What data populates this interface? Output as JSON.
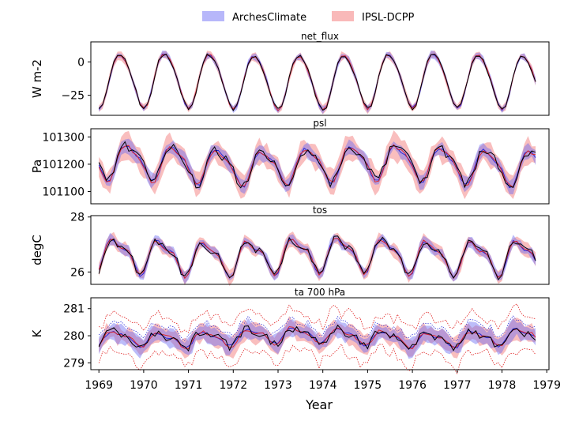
{
  "chart_data": {
    "type": "line",
    "xlabel": "Year",
    "x_ticks": [
      "1969",
      "1970",
      "1971",
      "1972",
      "1973",
      "1974",
      "1975",
      "1976",
      "1977",
      "1978",
      "1979"
    ],
    "xlim": [
      1968.82,
      1979.05
    ],
    "legend": {
      "placement": "top-center",
      "entries": [
        {
          "label": "ArchesClimate",
          "color": "#7b7bf5"
        },
        {
          "label": "IPSL-DCPP",
          "color": "#f58a8a"
        }
      ]
    },
    "colors": {
      "arches_band": "#6a6af2",
      "ipsl_band": "#f26f6f",
      "arches_line": "#1f1fd6",
      "ipsl_line": "#e02020",
      "truth_line": "#000000"
    },
    "panels": [
      {
        "title": "net_flux",
        "ylabel": "W m-2",
        "ylim": [
          -40,
          15
        ],
        "yticks": [
          {
            "v": 0,
            "label": "0"
          },
          {
            "v": -25,
            "label": "−25"
          }
        ],
        "mean": -14,
        "amp": 20,
        "harm2": 2,
        "phase": 0.24,
        "noise": 1.5,
        "band_a": 2.2,
        "band_i": 2.6,
        "seed": 11
      },
      {
        "title": "psl",
        "ylabel": "Pa",
        "ylim": [
          101055,
          101330
        ],
        "yticks": [
          {
            "v": 101300,
            "label": "101300"
          },
          {
            "v": 101200,
            "label": "101200"
          },
          {
            "v": 101100,
            "label": "101100"
          }
        ],
        "mean": 101200,
        "amp": 60,
        "harm2": 15,
        "phase": 0.42,
        "noise": 18,
        "band_a": 22,
        "band_i": 38,
        "seed": 23
      },
      {
        "title": "tos",
        "ylabel": "degC",
        "ylim": [
          25.55,
          28.05
        ],
        "yticks": [
          {
            "v": 28,
            "label": "28"
          },
          {
            "v": 26,
            "label": "26"
          }
        ],
        "mean": 26.6,
        "amp": 0.55,
        "harm2": 0.22,
        "phase": 0.14,
        "noise": 0.12,
        "band_a": 0.16,
        "band_i": 0.2,
        "seed": 37
      },
      {
        "title": "ta 700 hPa",
        "ylabel": "K",
        "ylim": [
          278.75,
          281.4
        ],
        "yticks": [
          {
            "v": 281,
            "label": "281"
          },
          {
            "v": 280,
            "label": "280"
          },
          {
            "v": 279,
            "label": "279"
          }
        ],
        "mean": 279.95,
        "amp": 0.25,
        "harm2": 0.1,
        "phase": 0.15,
        "noise": 0.15,
        "band_a": 0.28,
        "band_i": 0.3,
        "seed": 53,
        "envelope": true
      }
    ]
  }
}
